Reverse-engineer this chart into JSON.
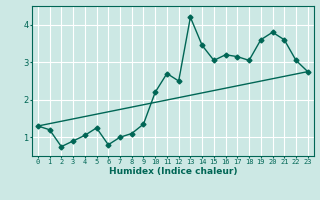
{
  "title": "",
  "xlabel": "Humidex (Indice chaleur)",
  "ylabel": "",
  "bg_color": "#cce8e4",
  "line_color": "#006655",
  "grid_color": "#ffffff",
  "xlim": [
    -0.5,
    23.5
  ],
  "ylim": [
    0.5,
    4.5
  ],
  "yticks": [
    1,
    2,
    3,
    4
  ],
  "xticks": [
    0,
    1,
    2,
    3,
    4,
    5,
    6,
    7,
    8,
    9,
    10,
    11,
    12,
    13,
    14,
    15,
    16,
    17,
    18,
    19,
    20,
    21,
    22,
    23
  ],
  "line1_x": [
    0,
    1,
    2,
    3,
    4,
    5,
    6,
    7,
    8,
    9,
    10,
    11,
    12,
    13,
    14,
    15,
    16,
    17,
    18,
    19,
    20,
    21,
    22,
    23
  ],
  "line1_y": [
    1.3,
    1.2,
    0.75,
    0.9,
    1.05,
    1.25,
    0.8,
    1.0,
    1.1,
    1.35,
    2.2,
    2.7,
    2.5,
    4.2,
    3.45,
    3.05,
    3.2,
    3.15,
    3.05,
    3.6,
    3.8,
    3.6,
    3.05,
    2.75
  ],
  "line2_x": [
    0,
    23
  ],
  "line2_y": [
    1.3,
    2.75
  ],
  "marker": "D",
  "markersize": 2.5,
  "linewidth": 1.0,
  "tick_fontsize": 5.0,
  "xlabel_fontsize": 6.5
}
